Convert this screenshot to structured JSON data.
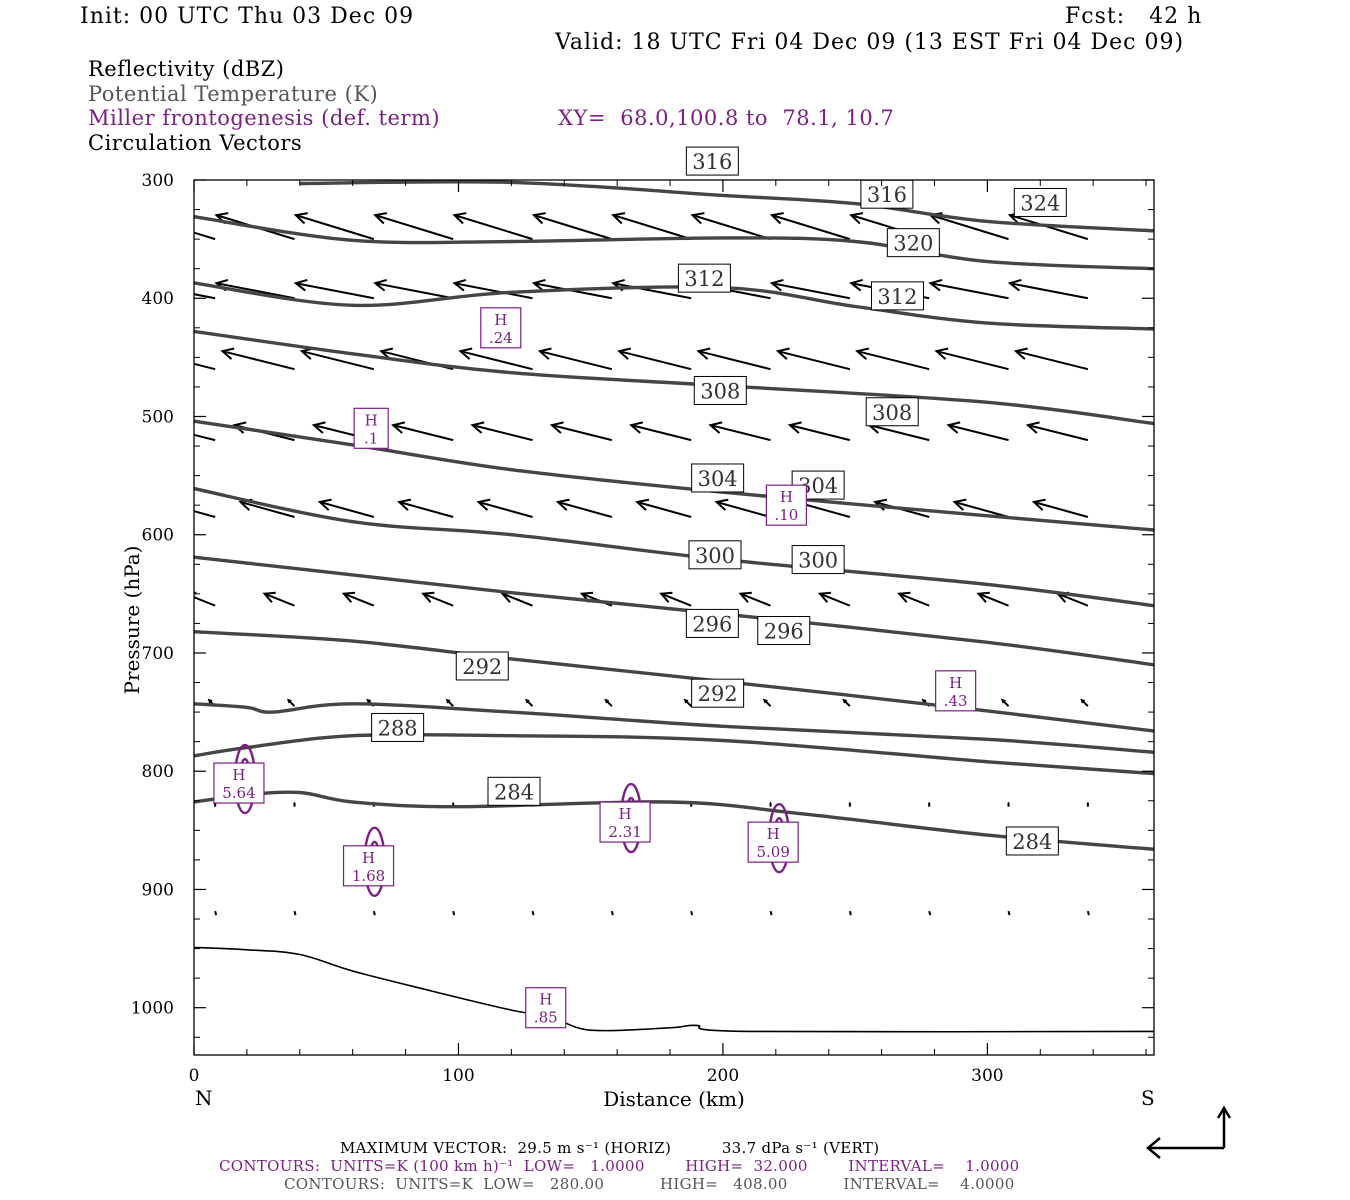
{
  "header": {
    "init": "Init: 00 UTC Thu 03 Dec 09",
    "fcst": "Fcst:   42 h",
    "valid": "Valid: 18 UTC Fri 04 Dec 09 (13 EST Fri 04 Dec 09)"
  },
  "legend": {
    "reflectivity": "Reflectivity (dBZ)",
    "theta": "Potential Temperature (K)",
    "miller": "Miller frontogenesis (def. term)",
    "xy": "XY=  68.0,100.8 to  78.1, 10.7",
    "vectors": "Circulation Vectors"
  },
  "footer": {
    "max_vector": "MAXIMUM VECTOR:  29.5 m s⁻¹ (HORIZ)          33.7 dPa s⁻¹ (VERT)",
    "contours_purple": "CONTOURS:  UNITS=K (100 km h)⁻¹  LOW=   1.0000        HIGH=  32.000        INTERVAL=    1.0000",
    "contours_black": "CONTOURS:  UNITS=K  LOW=   280.00           HIGH=   408.00           INTERVAL=    4.0000"
  },
  "colors": {
    "theta": "#454545",
    "frontogenesis": "#7b1f86",
    "vector": "#000000",
    "terrain": "#000000"
  },
  "chart_data": {
    "type": "line",
    "xlabel": "Distance (km)",
    "ylabel": "Pressure (hPa)",
    "xlim": [
      0,
      363
    ],
    "ylim": [
      1040,
      300
    ],
    "x_ticks": [
      0,
      100,
      200,
      300
    ],
    "y_ticks": [
      300,
      400,
      500,
      600,
      700,
      800,
      900,
      1000
    ],
    "x_end_labels": {
      "left": "N",
      "right": "S"
    },
    "grid": false,
    "theta_contours": [
      {
        "level": 284,
        "points": [
          [
            0,
            826
          ],
          [
            20,
            820
          ],
          [
            40,
            818
          ],
          [
            60,
            826
          ],
          [
            100,
            830
          ],
          [
            180,
            826
          ],
          [
            230,
            836
          ],
          [
            300,
            854
          ],
          [
            363,
            866
          ]
        ],
        "labels": [
          [
            121,
            817
          ],
          [
            317,
            859
          ]
        ]
      },
      {
        "level": 288,
        "points": [
          [
            0,
            787
          ],
          [
            20,
            780
          ],
          [
            60,
            770
          ],
          [
            120,
            770
          ],
          [
            200,
            774
          ],
          [
            300,
            792
          ],
          [
            363,
            802
          ]
        ],
        "labels": [
          [
            77,
            763
          ]
        ]
      },
      {
        "level": 292,
        "points": [
          [
            0,
            743
          ],
          [
            20,
            746
          ],
          [
            30,
            750
          ],
          [
            60,
            743
          ],
          [
            120,
            750
          ],
          [
            200,
            762
          ],
          [
            300,
            773
          ],
          [
            363,
            784
          ]
        ],
        "labels": [
          [
            109,
            711
          ],
          [
            198,
            734
          ]
        ]
      },
      {
        "level": 296,
        "points": [
          [
            0,
            682
          ],
          [
            60,
            690
          ],
          [
            120,
            705
          ],
          [
            200,
            724
          ],
          [
            300,
            749
          ],
          [
            363,
            766
          ]
        ],
        "labels": [
          [
            196,
            675
          ],
          [
            223,
            681
          ]
        ]
      },
      {
        "level": 300,
        "points": [
          [
            0,
            619
          ],
          [
            60,
            634
          ],
          [
            120,
            649
          ],
          [
            200,
            667
          ],
          [
            300,
            691
          ],
          [
            363,
            710
          ]
        ],
        "labels": [
          [
            197,
            617
          ],
          [
            236,
            621
          ]
        ]
      },
      {
        "level": 304,
        "points": [
          [
            0,
            561
          ],
          [
            60,
            589
          ],
          [
            120,
            600
          ],
          [
            200,
            621
          ],
          [
            300,
            642
          ],
          [
            363,
            660
          ]
        ],
        "labels": [
          [
            198,
            552
          ],
          [
            236,
            558
          ]
        ]
      },
      {
        "level": 308,
        "points": [
          [
            0,
            504
          ],
          [
            60,
            524
          ],
          [
            120,
            545
          ],
          [
            200,
            564
          ],
          [
            300,
            584
          ],
          [
            363,
            596
          ]
        ],
        "labels": [
          [
            199,
            478
          ],
          [
            264,
            496
          ]
        ]
      },
      {
        "level": 312,
        "points": [
          [
            0,
            428
          ],
          [
            60,
            447
          ],
          [
            120,
            463
          ],
          [
            200,
            474
          ],
          [
            300,
            488
          ],
          [
            363,
            506
          ]
        ],
        "labels": [
          [
            193,
            383
          ],
          [
            266,
            398
          ]
        ]
      },
      {
        "level": 316,
        "points": [
          [
            0,
            387
          ],
          [
            60,
            406
          ],
          [
            120,
            395
          ],
          [
            200,
            391
          ],
          [
            250,
            407
          ],
          [
            300,
            421
          ],
          [
            363,
            426
          ]
        ],
        "labels": [
          [
            196,
            284
          ],
          [
            262,
            312
          ]
        ]
      },
      {
        "level": 320,
        "points": [
          [
            0,
            331
          ],
          [
            60,
            351
          ],
          [
            120,
            352
          ],
          [
            200,
            349
          ],
          [
            250,
            352
          ],
          [
            300,
            369
          ],
          [
            363,
            375
          ]
        ],
        "labels": [
          [
            272,
            353
          ]
        ]
      },
      {
        "level": 324,
        "points": [
          [
            40,
            303
          ],
          [
            120,
            302
          ],
          [
            200,
            313
          ],
          [
            250,
            320
          ],
          [
            300,
            335
          ],
          [
            363,
            343
          ]
        ],
        "labels": [
          [
            320,
            319
          ]
        ]
      }
    ],
    "frontogenesis_maxima": [
      {
        "x": 116,
        "p": 425,
        "label": "H",
        "value": ".24"
      },
      {
        "x": 67,
        "p": 510,
        "label": "H",
        "value": ".1"
      },
      {
        "x": 224,
        "p": 575,
        "label": "H",
        "value": ".10"
      },
      {
        "x": 288,
        "p": 732,
        "label": "H",
        "value": ".43"
      },
      {
        "x": 17,
        "p": 810,
        "label": "H",
        "value": "5.64"
      },
      {
        "x": 66,
        "p": 880,
        "label": "H",
        "value": "1.68"
      },
      {
        "x": 163,
        "p": 843,
        "label": "H",
        "value": "2.31"
      },
      {
        "x": 219,
        "p": 860,
        "label": "H",
        "value": "5.09"
      },
      {
        "x": 133,
        "p": 1000,
        "label": "H",
        "value": ".85"
      }
    ],
    "terrain_surface": [
      [
        0,
        949
      ],
      [
        20,
        951
      ],
      [
        40,
        955
      ],
      [
        60,
        969
      ],
      [
        90,
        986
      ],
      [
        120,
        1002
      ],
      [
        135,
        1008
      ],
      [
        150,
        1019
      ],
      [
        180,
        1017
      ],
      [
        190,
        1015
      ],
      [
        210,
        1020
      ],
      [
        363,
        1020
      ]
    ],
    "vector_rows": [
      {
        "p": 350,
        "count": 12,
        "u": -26,
        "w": 8
      },
      {
        "p": 400,
        "count": 12,
        "u": -26,
        "w": 5
      },
      {
        "p": 460,
        "count": 12,
        "u": -24,
        "w": 6
      },
      {
        "p": 520,
        "count": 12,
        "u": -20,
        "w": 5
      },
      {
        "p": 585,
        "count": 12,
        "u": -18,
        "w": 5
      },
      {
        "p": 660,
        "count": 12,
        "u": -10,
        "w": 4
      },
      {
        "p": 745,
        "count": 12,
        "u": -2,
        "w": 2
      },
      {
        "p": 830,
        "count": 12,
        "u": 0,
        "w": 1
      },
      {
        "p": 920,
        "count": 12,
        "u": 0,
        "w": 0
      }
    ],
    "reference_vector": {
      "horiz": 29.5,
      "vert": 33.7
    }
  }
}
